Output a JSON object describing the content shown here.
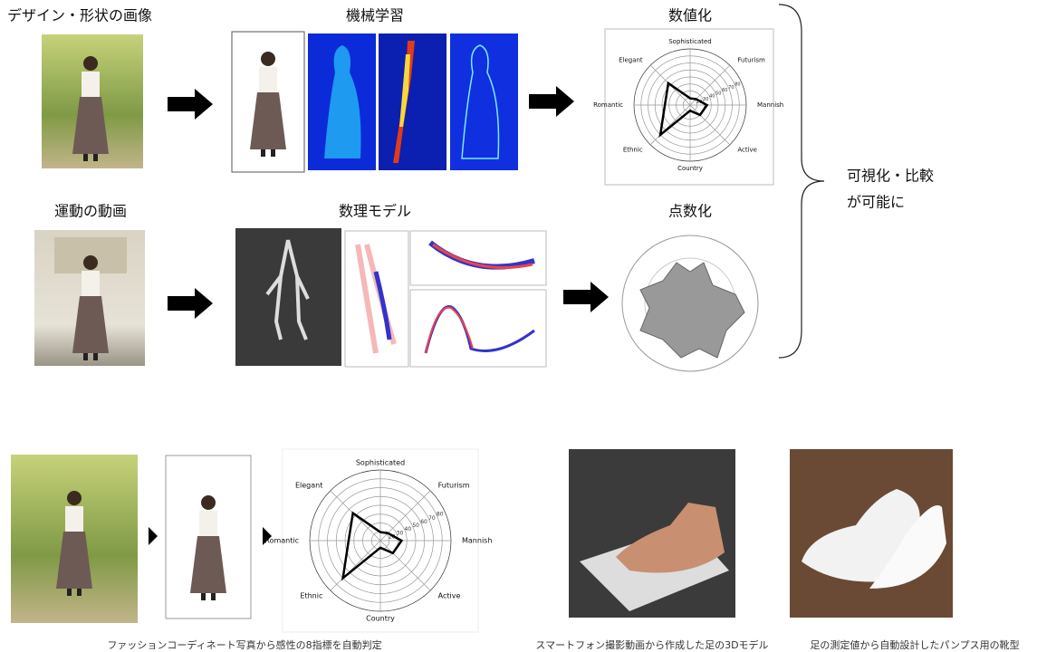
{
  "top": {
    "row1": {
      "input_label": "デザイン・形状の画像",
      "process_label": "機械学習",
      "output_label": "数値化"
    },
    "row2": {
      "input_label": "運動の動画",
      "process_label": "数理モデル",
      "output_label": "点数化"
    },
    "conclusion": [
      "可視化・比較",
      "が可能に"
    ]
  },
  "radar": {
    "axes": [
      "Sophisticated",
      "Futurism",
      "Mannish",
      "Active",
      "Country",
      "Ethnic",
      "Romantic",
      "Elegant"
    ],
    "rings": [
      "20",
      "30",
      "40",
      "50",
      "60",
      "70",
      "80"
    ]
  },
  "bottom": {
    "captions": [
      "ファッションコーディネート写真から感性の8指標を自動判定",
      "スマートフォン撮影動画から作成した足の3Dモデル",
      "足の測定値から自動設計したパンプス用の靴型"
    ]
  }
}
